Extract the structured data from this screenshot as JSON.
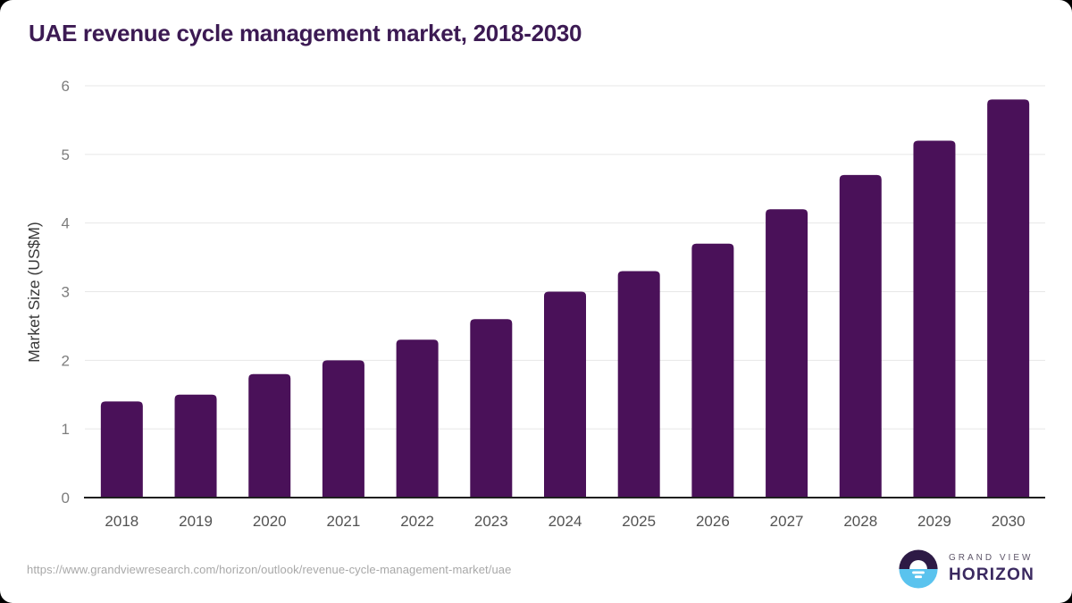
{
  "title": "UAE revenue cycle management market, 2018-2030",
  "colors": {
    "title": "#3c1a53",
    "bar": "#4a1159",
    "grid_line": "#e7e7e7",
    "axis_line": "#1f1f1f",
    "y_tick_label": "#7d7d7d",
    "x_tick_label": "#525252",
    "axis_title": "#3a3a3a",
    "footer_text": "#a8a8a8",
    "logo_dark": "#2d1a45",
    "logo_blue": "#5ac3ee",
    "logo_grandview": "#5d5568",
    "logo_horizon": "#3a2960"
  },
  "chart_data": {
    "type": "bar",
    "title": "UAE revenue cycle management market, 2018-2030",
    "categories": [
      "2018",
      "2019",
      "2020",
      "2021",
      "2022",
      "2023",
      "2024",
      "2025",
      "2026",
      "2027",
      "2028",
      "2029",
      "2030"
    ],
    "values": [
      1.4,
      1.5,
      1.8,
      2.0,
      2.3,
      2.6,
      3.0,
      3.3,
      3.7,
      4.2,
      4.7,
      5.2,
      5.8
    ],
    "xlabel": "",
    "ylabel": "Market Size (US$M)",
    "ylim": [
      0,
      6
    ],
    "yticks": [
      0,
      1,
      2,
      3,
      4,
      5,
      6
    ],
    "grid": true,
    "legend": false,
    "bar_color": "#4a1159"
  },
  "footer": {
    "source_url": "https://www.grandviewresearch.com/horizon/outlook/revenue-cycle-management-market/uae",
    "logo": {
      "line1": "GRAND VIEW",
      "line2": "HORIZON"
    }
  }
}
